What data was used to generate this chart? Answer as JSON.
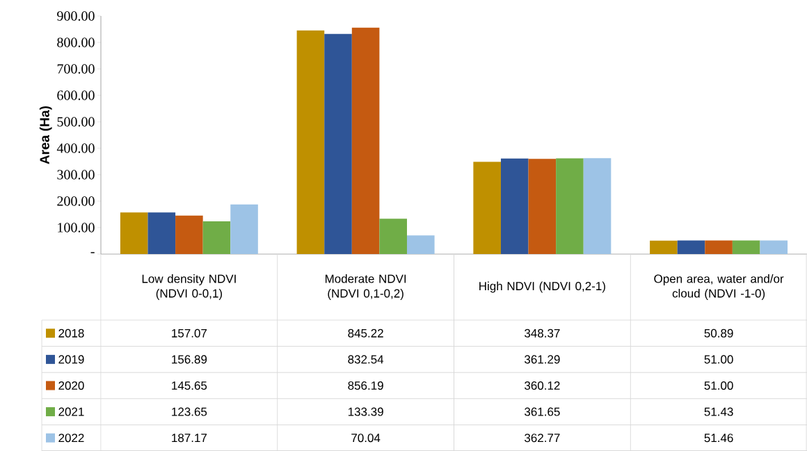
{
  "chart_data": {
    "type": "bar",
    "ylabel": "Area (Ha)",
    "categories": [
      "Low density NDVI (NDVI 0-0,1)",
      "Moderate NDVI (NDVI 0,1-0,2)",
      "High NDVI (NDVI 0,2-1)",
      "Open area, water and/or cloud (NDVI -1-0)"
    ],
    "series": [
      {
        "name": "2018",
        "color": "#bf9000",
        "values": [
          157.07,
          845.22,
          348.37,
          50.89
        ],
        "value_labels": [
          "157.07",
          "845.22",
          "348.37",
          "50.89"
        ]
      },
      {
        "name": "2019",
        "color": "#2f5597",
        "values": [
          156.89,
          832.54,
          361.29,
          51.0
        ],
        "value_labels": [
          "156.89",
          "832.54",
          "361.29",
          "51.00"
        ]
      },
      {
        "name": "2020",
        "color": "#c55a11",
        "values": [
          145.65,
          856.19,
          360.12,
          51.0
        ],
        "value_labels": [
          "145.65",
          "856.19",
          "360.12",
          "51.00"
        ]
      },
      {
        "name": "2021",
        "color": "#70ad47",
        "values": [
          123.65,
          133.39,
          361.65,
          51.43
        ],
        "value_labels": [
          "123.65",
          "133.39",
          "361.65",
          "51.43"
        ]
      },
      {
        "name": "2022",
        "color": "#9dc3e6",
        "values": [
          187.17,
          70.04,
          362.77,
          51.46
        ],
        "value_labels": [
          "187.17",
          "70.04",
          "362.77",
          "51.46"
        ]
      }
    ],
    "ylim": [
      0,
      900
    ],
    "yticks": [
      {
        "value": 0,
        "label": "-"
      },
      {
        "value": 100,
        "label": "100.00"
      },
      {
        "value": 200,
        "label": "200.00"
      },
      {
        "value": 300,
        "label": "300.00"
      },
      {
        "value": 400,
        "label": "400.00"
      },
      {
        "value": 500,
        "label": "500.00"
      },
      {
        "value": 600,
        "label": "600.00"
      },
      {
        "value": 700,
        "label": "700.00"
      },
      {
        "value": 800,
        "label": "800.00"
      },
      {
        "value": 900,
        "label": "900.00"
      }
    ],
    "legend": "bottom"
  }
}
